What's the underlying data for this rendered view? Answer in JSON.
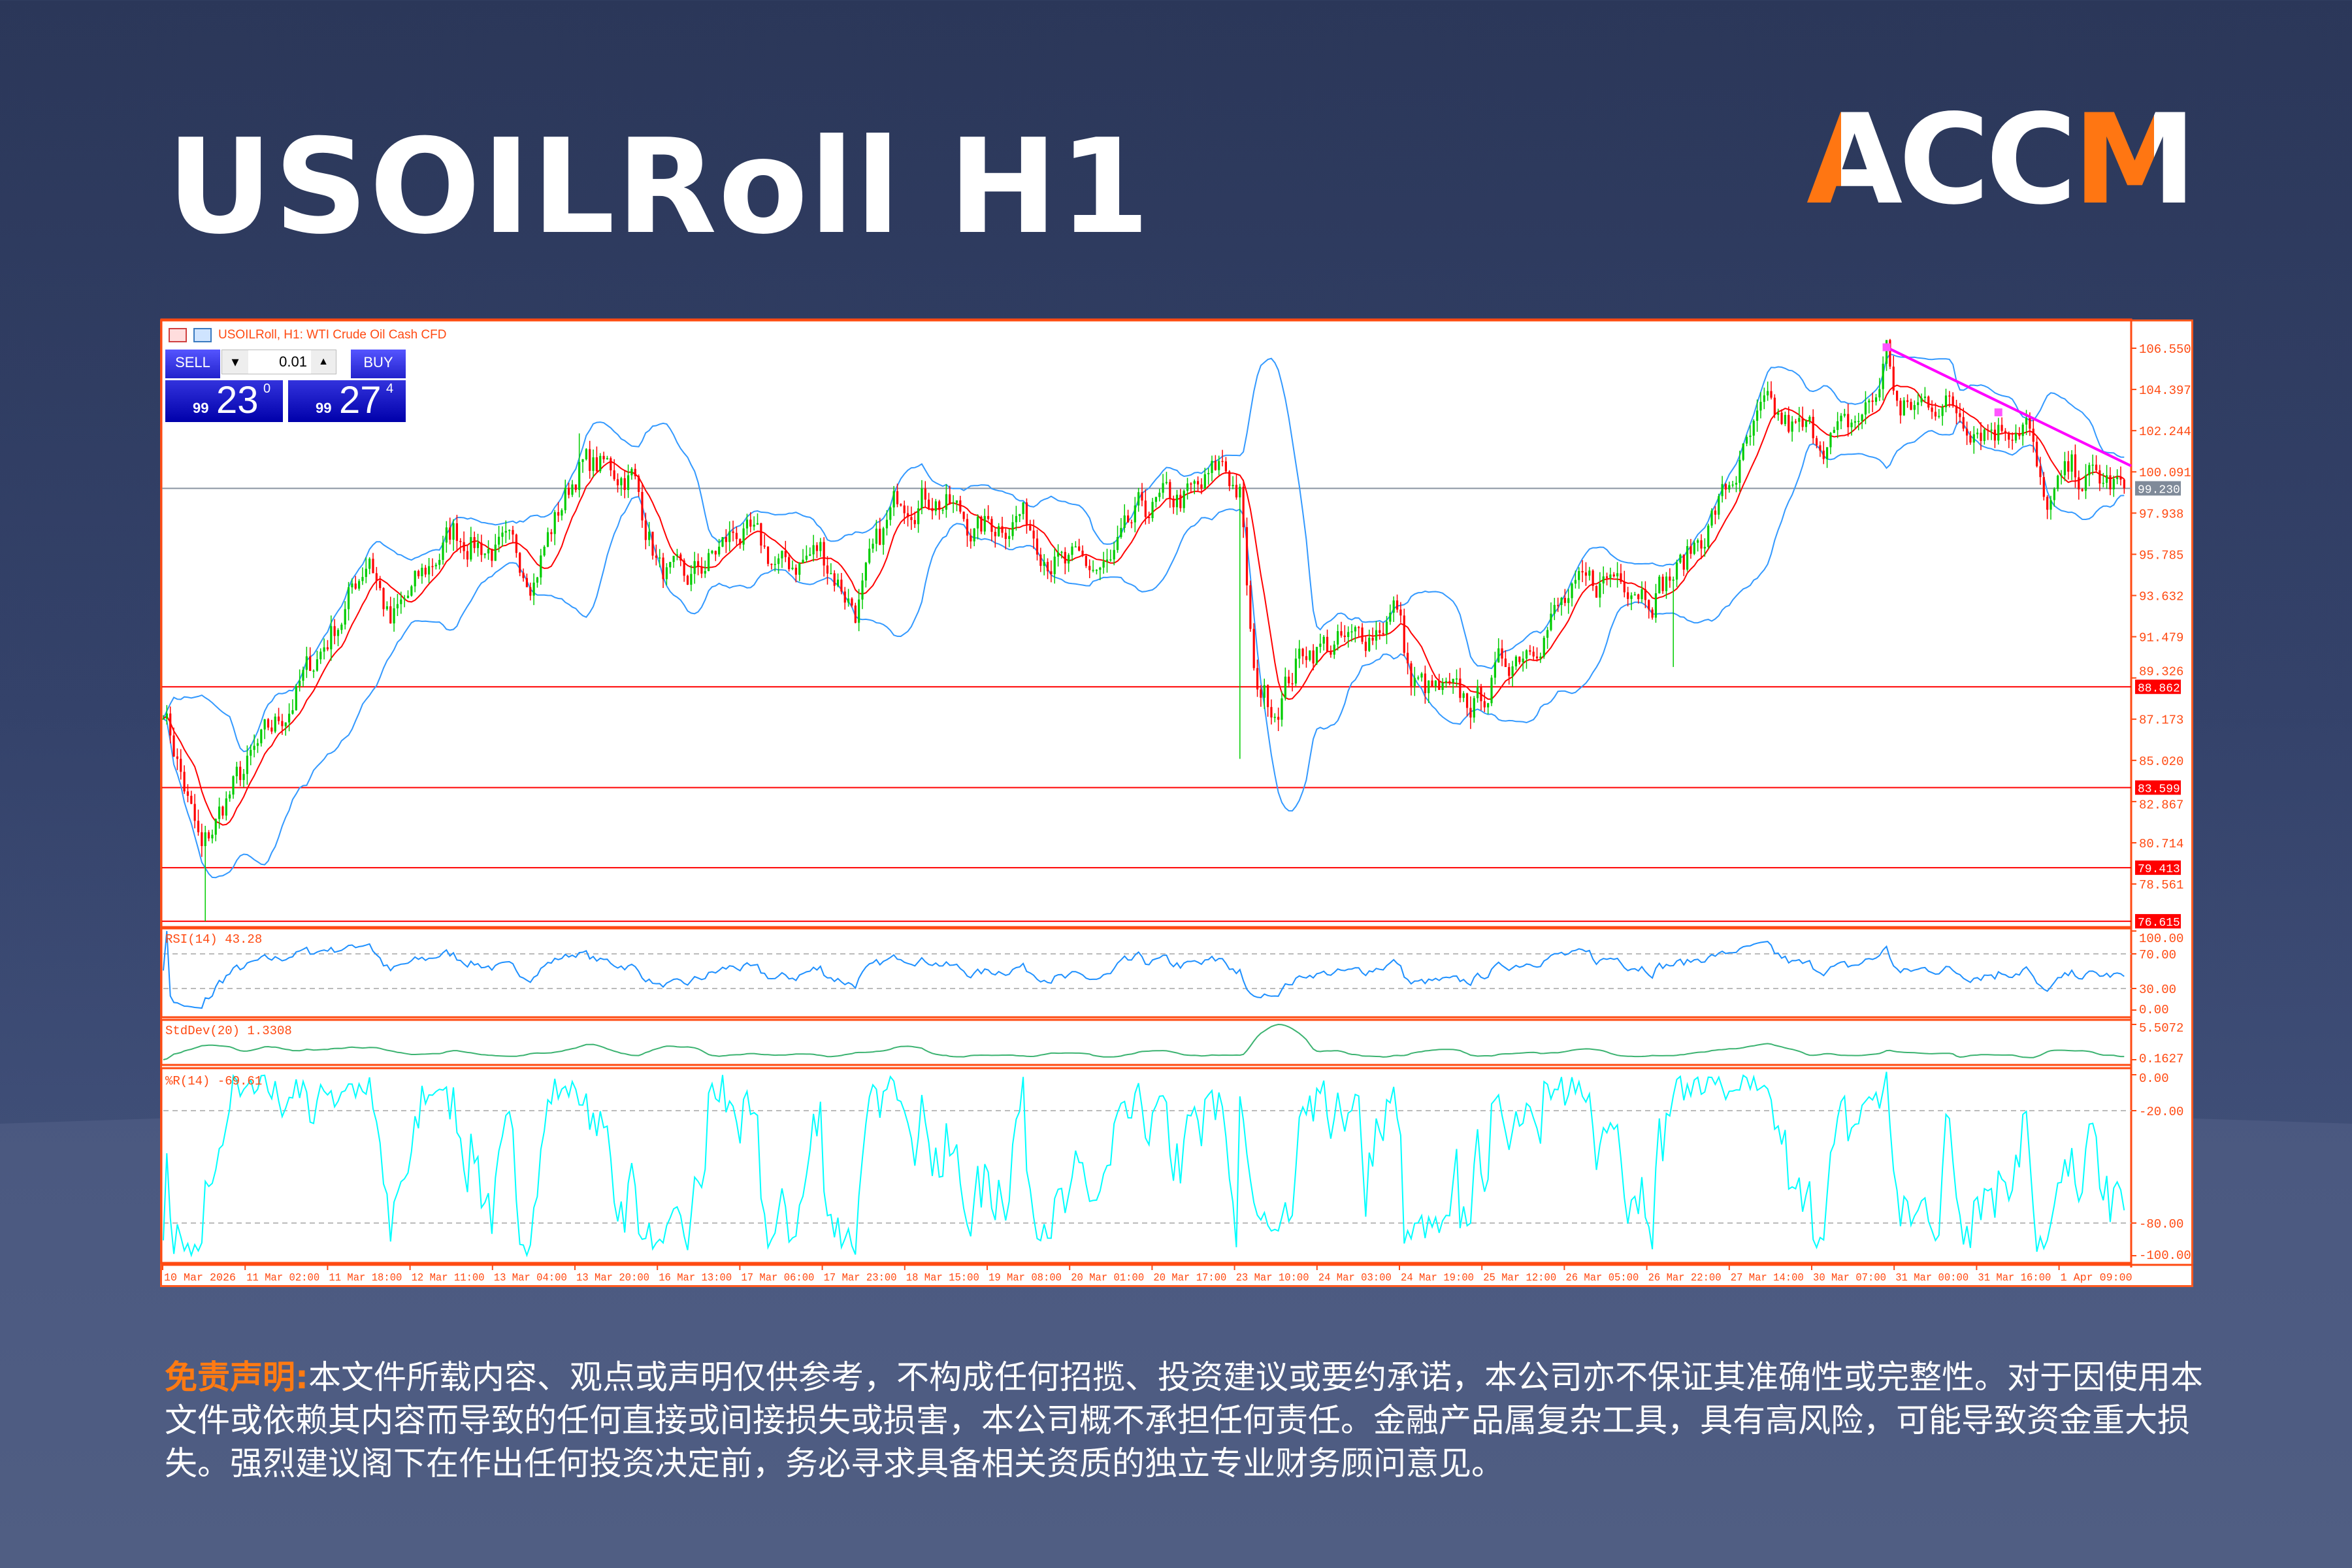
{
  "header": {
    "title": "USOILRoll H1",
    "brand": "ACCM"
  },
  "chart_window": {
    "caption": "USOILRoll, H1:  WTI Crude Oil Cash CFD",
    "sell_label": "SELL",
    "buy_label": "BUY",
    "lot": "0.01",
    "sell_price": {
      "small": "99",
      "big": "23",
      "sup": "0"
    },
    "buy_price": {
      "small": "99",
      "big": "27",
      "sup": "4"
    }
  },
  "chart_data": [
    {
      "type": "candlestick",
      "title": "USOILRoll, H1",
      "colors": {
        "up": "#00cc00",
        "down": "#ff0000",
        "bollinger": "#3399ff",
        "ma": "#ff0000",
        "trendline": "#ff00ff"
      },
      "y_ticks": [
        "106.550",
        "104.397",
        "102.244",
        "100.091",
        "97.938",
        "95.785",
        "93.632",
        "91.479",
        "89.326",
        "87.173",
        "85.020",
        "82.867",
        "80.714",
        "78.561"
      ],
      "ylim": [
        76.31,
        108.02
      ],
      "current_price": "99.230",
      "levels": [
        "88.862",
        "83.599",
        "79.413",
        "76.615"
      ],
      "approx_close_keypoints": [
        [
          0,
          88
        ],
        [
          11,
          80
        ],
        [
          18,
          83
        ],
        [
          33,
          87
        ],
        [
          52,
          93
        ],
        [
          59,
          96
        ],
        [
          65,
          92
        ],
        [
          83,
          97
        ],
        [
          95,
          96
        ],
        [
          106,
          95
        ],
        [
          119,
          100.5
        ],
        [
          134,
          100
        ],
        [
          142,
          95
        ],
        [
          149,
          94
        ],
        [
          164,
          97
        ],
        [
          177,
          95
        ],
        [
          188,
          96
        ],
        [
          198,
          93
        ],
        [
          211,
          99
        ],
        [
          220,
          99
        ],
        [
          233,
          97
        ],
        [
          245,
          98
        ],
        [
          258,
          95
        ],
        [
          271,
          95
        ],
        [
          280,
          98
        ],
        [
          297,
          99
        ],
        [
          303,
          100.5
        ],
        [
          308,
          99
        ],
        [
          312,
          89
        ],
        [
          318,
          88
        ],
        [
          327,
          91
        ],
        [
          340,
          91
        ],
        [
          353,
          93
        ],
        [
          357,
          89
        ],
        [
          370,
          88
        ],
        [
          376,
          88
        ],
        [
          383,
          90
        ],
        [
          400,
          93
        ],
        [
          417,
          95
        ],
        [
          426,
          94
        ],
        [
          434,
          95
        ],
        [
          447,
          99
        ],
        [
          458,
          103
        ],
        [
          469,
          102
        ],
        [
          481,
          102
        ],
        [
          490,
          104
        ],
        [
          493,
          106.5
        ],
        [
          497,
          103
        ],
        [
          507,
          104
        ],
        [
          516,
          103
        ],
        [
          525,
          102.5
        ],
        [
          533,
          103
        ],
        [
          538,
          98
        ],
        [
          546,
          100
        ],
        [
          561,
          99.2
        ]
      ],
      "x_ticks": [
        "10 Mar 2026",
        "11 Mar 02:00",
        "11 Mar 18:00",
        "12 Mar 11:00",
        "13 Mar 04:00",
        "13 Mar 20:00",
        "16 Mar 13:00",
        "17 Mar 06:00",
        "17 Mar 23:00",
        "18 Mar 15:00",
        "19 Mar 08:00",
        "20 Mar 01:00",
        "20 Mar 17:00",
        "23 Mar 10:00",
        "24 Mar 03:00",
        "24 Mar 19:00",
        "25 Mar 12:00",
        "26 Mar 05:00",
        "26 Mar 22:00",
        "27 Mar 14:00",
        "30 Mar 07:00",
        "31 Mar 00:00",
        "31 Mar 16:00",
        "1 Apr 09:00"
      ]
    },
    {
      "type": "line",
      "title": "RSI(14) 43.28",
      "y_ticks": [
        "100.00",
        "70.00",
        "30.00",
        "0.00"
      ],
      "ylim": [
        0,
        100
      ],
      "color": "#1e90ff"
    },
    {
      "type": "line",
      "title": "StdDev(20) 1.3308",
      "y_ticks": [
        "5.5072",
        "0.1627"
      ],
      "color": "#3cb371"
    },
    {
      "type": "line",
      "title": "%R(14) -69.61",
      "y_ticks": [
        "0.00",
        "-20.00",
        "-80.00",
        "-100.00"
      ],
      "ylim": [
        -100,
        0
      ],
      "color": "#00ffff"
    }
  ],
  "disclaimer": {
    "label": "免责声明:",
    "text": "本文件所载内容、观点或声明仅供参考，不构成任何招揽、投资建议或要约承诺，本公司亦不保证其准确性或完整性。对于因使用本文件或依赖其内容而导致的任何直接或间接损失或损害，本公司概不承担任何责任。金融产品属复杂工具，具有高风险，可能导致资金重大损失。强烈建议阁下在作出任何投资决定前，务必寻求具备相关资质的独立专业财务顾问意见。"
  }
}
